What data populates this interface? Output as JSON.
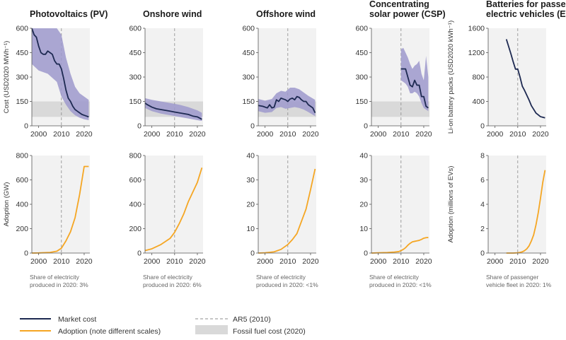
{
  "colors": {
    "market_cost": "#1d2951",
    "cost_band": "#9d99cc",
    "adoption": "#f5a623",
    "fossil_band": "#d9d9d9",
    "panel_bg": "#f2f2f2",
    "ar5_line": "#8c8c8c"
  },
  "legend": {
    "market_cost": "Market cost",
    "adoption": "Adoption (note different scales)",
    "ar5": "AR5 (2010)",
    "fossil": "Fossil fuel cost (2020)"
  },
  "axis_labels": {
    "cost_y": "Cost (USD2020 MWh⁻¹)",
    "battery_y": "Li-on battery packs (USD2020 kWh⁻¹)",
    "adoption_gw": "Adoption (GW)",
    "adoption_ev": "Adoption (millions of EVs)"
  },
  "chart_data": [
    {
      "type": "line",
      "title": [
        "Photovoltaics (PV)"
      ],
      "cost": {
        "ylim": [
          0,
          600
        ],
        "yticks": [
          0,
          150,
          300,
          450,
          600
        ],
        "xlim": [
          1997,
          2022.5
        ],
        "xticks": [
          2000,
          2010,
          2020
        ],
        "fossil_band": [
          55,
          150
        ],
        "market_cost": {
          "x": [
            1997,
            1998,
            1999,
            2000,
            2001,
            2002,
            2003,
            2004,
            2005,
            2006,
            2007,
            2008,
            2009,
            2010,
            2011,
            2012,
            2013,
            2014,
            2015,
            2016,
            2017,
            2018,
            2019,
            2020,
            2021,
            2022
          ],
          "y": [
            600,
            560,
            545,
            490,
            450,
            440,
            440,
            460,
            450,
            440,
            400,
            380,
            380,
            350,
            290,
            220,
            170,
            150,
            120,
            100,
            90,
            80,
            70,
            65,
            60,
            55
          ]
        },
        "band_upper": {
          "x": [
            1997,
            2000,
            2004,
            2008,
            2010,
            2012,
            2014,
            2016,
            2018,
            2020,
            2022
          ],
          "y": [
            600,
            600,
            600,
            600,
            560,
            420,
            320,
            240,
            200,
            180,
            160
          ]
        },
        "band_lower": {
          "x": [
            1997,
            2000,
            2004,
            2008,
            2010,
            2012,
            2014,
            2016,
            2018,
            2020,
            2022
          ],
          "y": [
            380,
            340,
            320,
            270,
            180,
            130,
            90,
            65,
            50,
            40,
            35
          ]
        }
      },
      "adoption": {
        "ylim": [
          0,
          800
        ],
        "yticks": [
          0,
          200,
          400,
          600,
          800
        ],
        "xlim": [
          1997,
          2022.5
        ],
        "xticks": [
          2000,
          2010,
          2020
        ],
        "x": [
          1997,
          2000,
          2005,
          2008,
          2010,
          2012,
          2014,
          2016,
          2018,
          2020,
          2022
        ],
        "y": [
          0,
          1,
          5,
          15,
          40,
          100,
          175,
          290,
          480,
          710,
          710
        ]
      },
      "share_note": [
        "Share of electricity",
        "produced in 2020: 3%"
      ]
    },
    {
      "type": "line",
      "title": [
        "Onshore wind"
      ],
      "cost": {
        "ylim": [
          0,
          600
        ],
        "yticks": [
          0,
          150,
          300,
          450,
          600
        ],
        "xlim": [
          1997,
          2022.5
        ],
        "xticks": [
          2000,
          2010,
          2020
        ],
        "fossil_band": [
          55,
          150
        ],
        "market_cost": {
          "x": [
            1997,
            1998,
            2000,
            2002,
            2004,
            2006,
            2008,
            2010,
            2012,
            2014,
            2016,
            2018,
            2020,
            2022
          ],
          "y": [
            140,
            130,
            115,
            105,
            100,
            95,
            90,
            85,
            80,
            75,
            70,
            60,
            55,
            40
          ]
        },
        "band_upper": {
          "x": [
            1997,
            2000,
            2004,
            2008,
            2012,
            2016,
            2020,
            2022
          ],
          "y": [
            170,
            160,
            150,
            140,
            130,
            115,
            95,
            80
          ]
        },
        "band_lower": {
          "x": [
            1997,
            2000,
            2004,
            2008,
            2012,
            2016,
            2020,
            2022
          ],
          "y": [
            110,
            90,
            75,
            65,
            55,
            45,
            35,
            30
          ]
        }
      },
      "adoption": {
        "ylim": [
          0,
          800
        ],
        "yticks": [
          0,
          200,
          400,
          600,
          800
        ],
        "xlim": [
          1997,
          2022.5
        ],
        "xticks": [
          2000,
          2010,
          2020
        ],
        "x": [
          1997,
          2000,
          2004,
          2008,
          2010,
          2012,
          2014,
          2016,
          2018,
          2020,
          2022
        ],
        "y": [
          20,
          35,
          70,
          120,
          170,
          240,
          320,
          420,
          500,
          580,
          700
        ]
      },
      "share_note": [
        "Share of electricity",
        "produced in 2020: 6%"
      ]
    },
    {
      "type": "line",
      "title": [
        "Offshore wind"
      ],
      "cost": {
        "ylim": [
          0,
          600
        ],
        "yticks": [
          0,
          150,
          300,
          450,
          600
        ],
        "xlim": [
          1997,
          2022.5
        ],
        "xticks": [
          2000,
          2010,
          2020
        ],
        "fossil_band": [
          55,
          150
        ],
        "market_cost": {
          "x": [
            1997,
            1999,
            2001,
            2002,
            2003,
            2004,
            2005,
            2006,
            2007,
            2008,
            2009,
            2010,
            2011,
            2012,
            2013,
            2014,
            2015,
            2016,
            2017,
            2018,
            2019,
            2020,
            2021,
            2022
          ],
          "y": [
            125,
            120,
            110,
            130,
            110,
            115,
            160,
            150,
            170,
            165,
            160,
            150,
            165,
            170,
            160,
            180,
            175,
            160,
            150,
            150,
            130,
            120,
            110,
            80
          ]
        },
        "band_upper": {
          "x": [
            1997,
            2000,
            2003,
            2005,
            2007,
            2009,
            2011,
            2013,
            2015,
            2017,
            2019,
            2022
          ],
          "y": [
            165,
            155,
            165,
            200,
            215,
            210,
            235,
            235,
            225,
            205,
            185,
            160
          ]
        },
        "band_lower": {
          "x": [
            1997,
            2000,
            2003,
            2005,
            2007,
            2009,
            2011,
            2013,
            2015,
            2017,
            2019,
            2022
          ],
          "y": [
            90,
            80,
            85,
            110,
            115,
            105,
            110,
            115,
            110,
            100,
            85,
            60
          ]
        }
      },
      "adoption": {
        "ylim": [
          0,
          40
        ],
        "yticks": [
          0,
          10,
          20,
          30,
          40
        ],
        "xlim": [
          1997,
          2022.5
        ],
        "xticks": [
          2000,
          2010,
          2020
        ],
        "x": [
          1997,
          2000,
          2004,
          2007,
          2010,
          2012,
          2014,
          2016,
          2018,
          2020,
          2022
        ],
        "y": [
          0,
          0.1,
          0.5,
          1.5,
          3.5,
          5.5,
          8,
          13,
          18,
          26,
          34.5
        ]
      },
      "share_note": [
        "Share of electricity",
        "produced in 2020: <1%"
      ]
    },
    {
      "type": "line",
      "title": [
        "Concentrating",
        "solar power (CSP)"
      ],
      "cost": {
        "ylim": [
          0,
          600
        ],
        "yticks": [
          0,
          150,
          300,
          450,
          600
        ],
        "xlim": [
          1997,
          2022.5
        ],
        "xticks": [
          2000,
          2010,
          2020
        ],
        "fossil_band": [
          55,
          150
        ],
        "market_cost": {
          "x": [
            2010,
            2011,
            2012,
            2013,
            2014,
            2015,
            2016,
            2017,
            2018,
            2019,
            2020,
            2021,
            2022
          ],
          "y": [
            350,
            350,
            350,
            300,
            250,
            240,
            280,
            250,
            250,
            180,
            180,
            120,
            110
          ]
        },
        "band_upper": {
          "x": [
            2010,
            2011,
            2012,
            2013,
            2014,
            2015,
            2016,
            2017,
            2018,
            2019,
            2020,
            2021,
            2022
          ],
          "y": [
            470,
            480,
            450,
            420,
            380,
            350,
            370,
            380,
            400,
            320,
            280,
            430,
            300
          ]
        },
        "band_lower": {
          "x": [
            2010,
            2011,
            2012,
            2013,
            2014,
            2015,
            2016,
            2017,
            2018,
            2019,
            2020,
            2021,
            2022
          ],
          "y": [
            280,
            270,
            260,
            240,
            200,
            200,
            210,
            200,
            180,
            140,
            110,
            100,
            90
          ]
        }
      },
      "adoption": {
        "ylim": [
          0,
          40
        ],
        "yticks": [
          0,
          10,
          20,
          30,
          40
        ],
        "xlim": [
          1997,
          2022.5
        ],
        "xticks": [
          2000,
          2010,
          2020
        ],
        "x": [
          1997,
          2000,
          2004,
          2007,
          2009,
          2010,
          2011,
          2012,
          2013,
          2014,
          2015,
          2016,
          2017,
          2018,
          2019,
          2020,
          2021,
          2022
        ],
        "y": [
          0,
          0.1,
          0.2,
          0.4,
          0.6,
          1.0,
          1.5,
          2.2,
          3.2,
          4.0,
          4.6,
          4.8,
          5.0,
          5.2,
          5.6,
          6.1,
          6.3,
          6.4
        ]
      },
      "share_note": [
        "Share of electricity",
        "produced in 2020: <1%"
      ]
    },
    {
      "type": "line",
      "title": [
        "Batteries for passenger",
        "electric vehicles (EVs)"
      ],
      "cost": {
        "ylim": [
          0,
          1600
        ],
        "yticks": [
          0,
          400,
          800,
          1200,
          1600
        ],
        "xlim": [
          1997,
          2022.5
        ],
        "xticks": [
          2000,
          2010,
          2020
        ],
        "market_cost": {
          "x": [
            2005,
            2006,
            2007,
            2008,
            2009,
            2010,
            2011,
            2012,
            2013,
            2014,
            2015,
            2016,
            2017,
            2018,
            2019,
            2020,
            2021,
            2022
          ],
          "y": [
            1420,
            1300,
            1180,
            1050,
            930,
            930,
            800,
            650,
            580,
            500,
            420,
            330,
            270,
            210,
            180,
            150,
            140,
            130
          ]
        }
      },
      "adoption": {
        "ylim": [
          0,
          8
        ],
        "yticks": [
          0,
          2,
          4,
          6,
          8
        ],
        "xlim": [
          1997,
          2022.5
        ],
        "xticks": [
          2000,
          2010,
          2020
        ],
        "x": [
          2005,
          2008,
          2010,
          2011,
          2012,
          2013,
          2014,
          2015,
          2016,
          2017,
          2018,
          2019,
          2020,
          2021,
          2022
        ],
        "y": [
          0,
          0,
          0.02,
          0.05,
          0.1,
          0.2,
          0.35,
          0.6,
          1.0,
          1.5,
          2.3,
          3.3,
          4.5,
          5.8,
          6.8
        ]
      },
      "share_note": [
        "Share of passenger",
        "vehicle fleet in 2020: 1%"
      ]
    }
  ]
}
